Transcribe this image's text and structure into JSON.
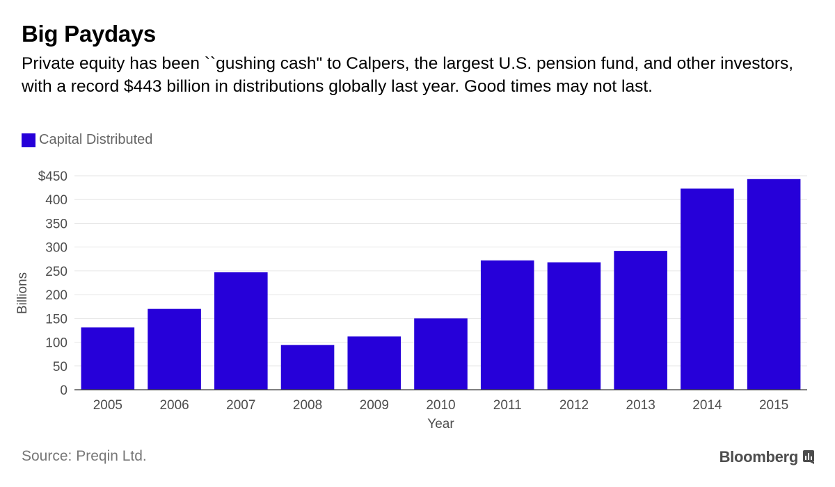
{
  "header": {
    "title": "Big Paydays",
    "subtitle": "Private equity has been ``gushing cash\" to Calpers, the largest U.S. pension fund, and other investors, with a record $443 billion in distributions globally last year. Good times may not last."
  },
  "legend": {
    "label": "Capital Distributed",
    "color": "#2600d9"
  },
  "footer": {
    "source": "Source: Preqin Ltd.",
    "brand": "Bloomberg",
    "brand_icon": "bloomberg-chart-icon"
  },
  "chart_data": {
    "type": "bar",
    "categories": [
      "2005",
      "2006",
      "2007",
      "2008",
      "2009",
      "2010",
      "2011",
      "2012",
      "2013",
      "2014",
      "2015"
    ],
    "series": [
      {
        "name": "Capital Distributed",
        "color": "#2600d9",
        "values": [
          131,
          170,
          247,
          94,
          112,
          150,
          272,
          268,
          292,
          423,
          443
        ]
      }
    ],
    "xlabel": "Year",
    "ylabel": "Billions",
    "ylim": [
      0,
      450
    ],
    "yticks": [
      0,
      50,
      100,
      150,
      200,
      250,
      300,
      350,
      400,
      450
    ],
    "ytick_labels": [
      "0",
      "50",
      "100",
      "150",
      "200",
      "250",
      "300",
      "350",
      "400",
      "$450"
    ],
    "grid": true,
    "legend_position": "top-left"
  }
}
